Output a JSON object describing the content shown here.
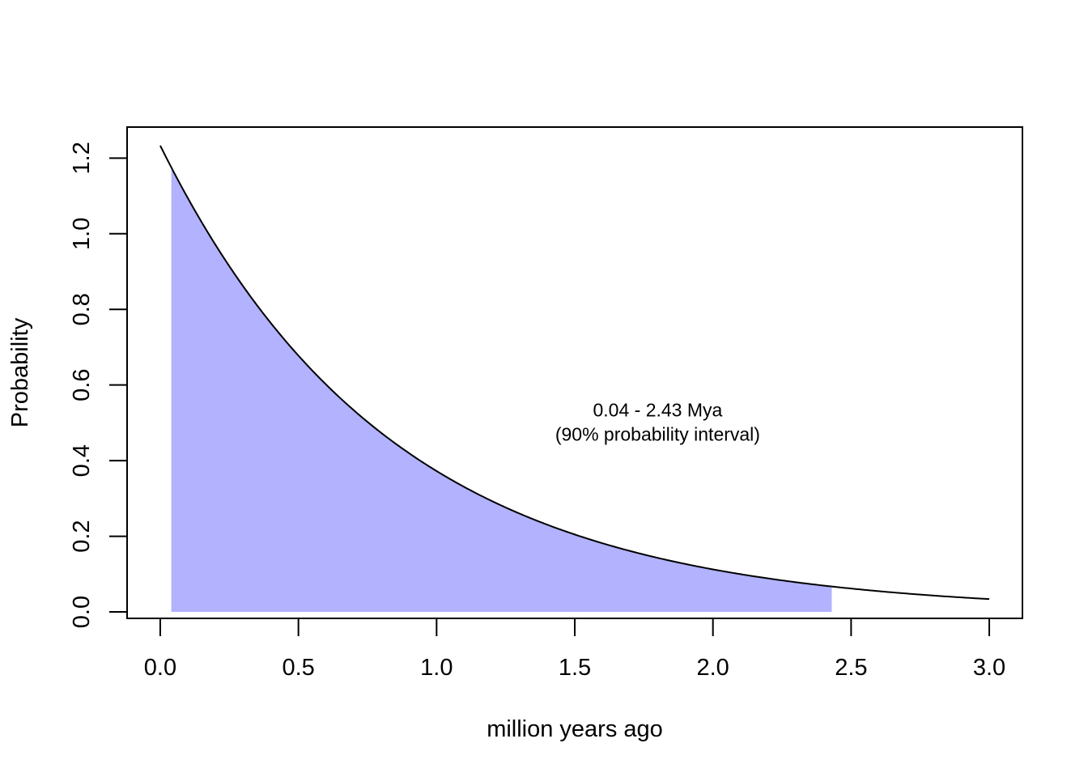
{
  "chart_data": {
    "type": "area",
    "title": "",
    "xlabel": "million years ago",
    "ylabel": "Probability",
    "xlim": [
      -0.12,
      3.12
    ],
    "ylim": [
      -0.017,
      1.282
    ],
    "x_ticks": [
      0.0,
      0.5,
      1.0,
      1.5,
      2.0,
      2.5,
      3.0
    ],
    "x_tick_labels": [
      "0.0",
      "0.5",
      "1.0",
      "1.5",
      "2.0",
      "2.5",
      "3.0"
    ],
    "y_ticks": [
      0.0,
      0.2,
      0.4,
      0.6,
      0.8,
      1.0,
      1.2
    ],
    "y_tick_labels": [
      "0.0",
      "0.2",
      "0.4",
      "0.6",
      "0.8",
      "1.0",
      "1.2"
    ],
    "grid": false,
    "series": [
      {
        "style": "line",
        "color": "#000000",
        "x": [
          0.0,
          0.1,
          0.2,
          0.3,
          0.4,
          0.5,
          0.6,
          0.7,
          0.8,
          0.9,
          1.0,
          1.1,
          1.2,
          1.3,
          1.4,
          1.5,
          1.6,
          1.7,
          1.8,
          1.9,
          2.0,
          2.1,
          2.2,
          2.3,
          2.4,
          2.5,
          2.6,
          2.7,
          2.8,
          2.9,
          3.0
        ],
        "y": [
          1.233,
          1.094,
          0.97,
          0.86,
          0.763,
          0.677,
          0.6,
          0.533,
          0.472,
          0.419,
          0.372,
          0.33,
          0.292,
          0.259,
          0.23,
          0.204,
          0.181,
          0.16,
          0.142,
          0.126,
          0.112,
          0.099,
          0.088,
          0.078,
          0.069,
          0.062,
          0.055,
          0.048,
          0.043,
          0.038,
          0.034
        ]
      }
    ],
    "shaded_interval": {
      "from": 0.04,
      "to": 2.43,
      "color": "#b2b2ff"
    },
    "annotation": {
      "x": 1.8,
      "y": 0.5,
      "lines": [
        "0.04 - 2.43 Mya",
        "(90% probability interval)"
      ]
    }
  }
}
